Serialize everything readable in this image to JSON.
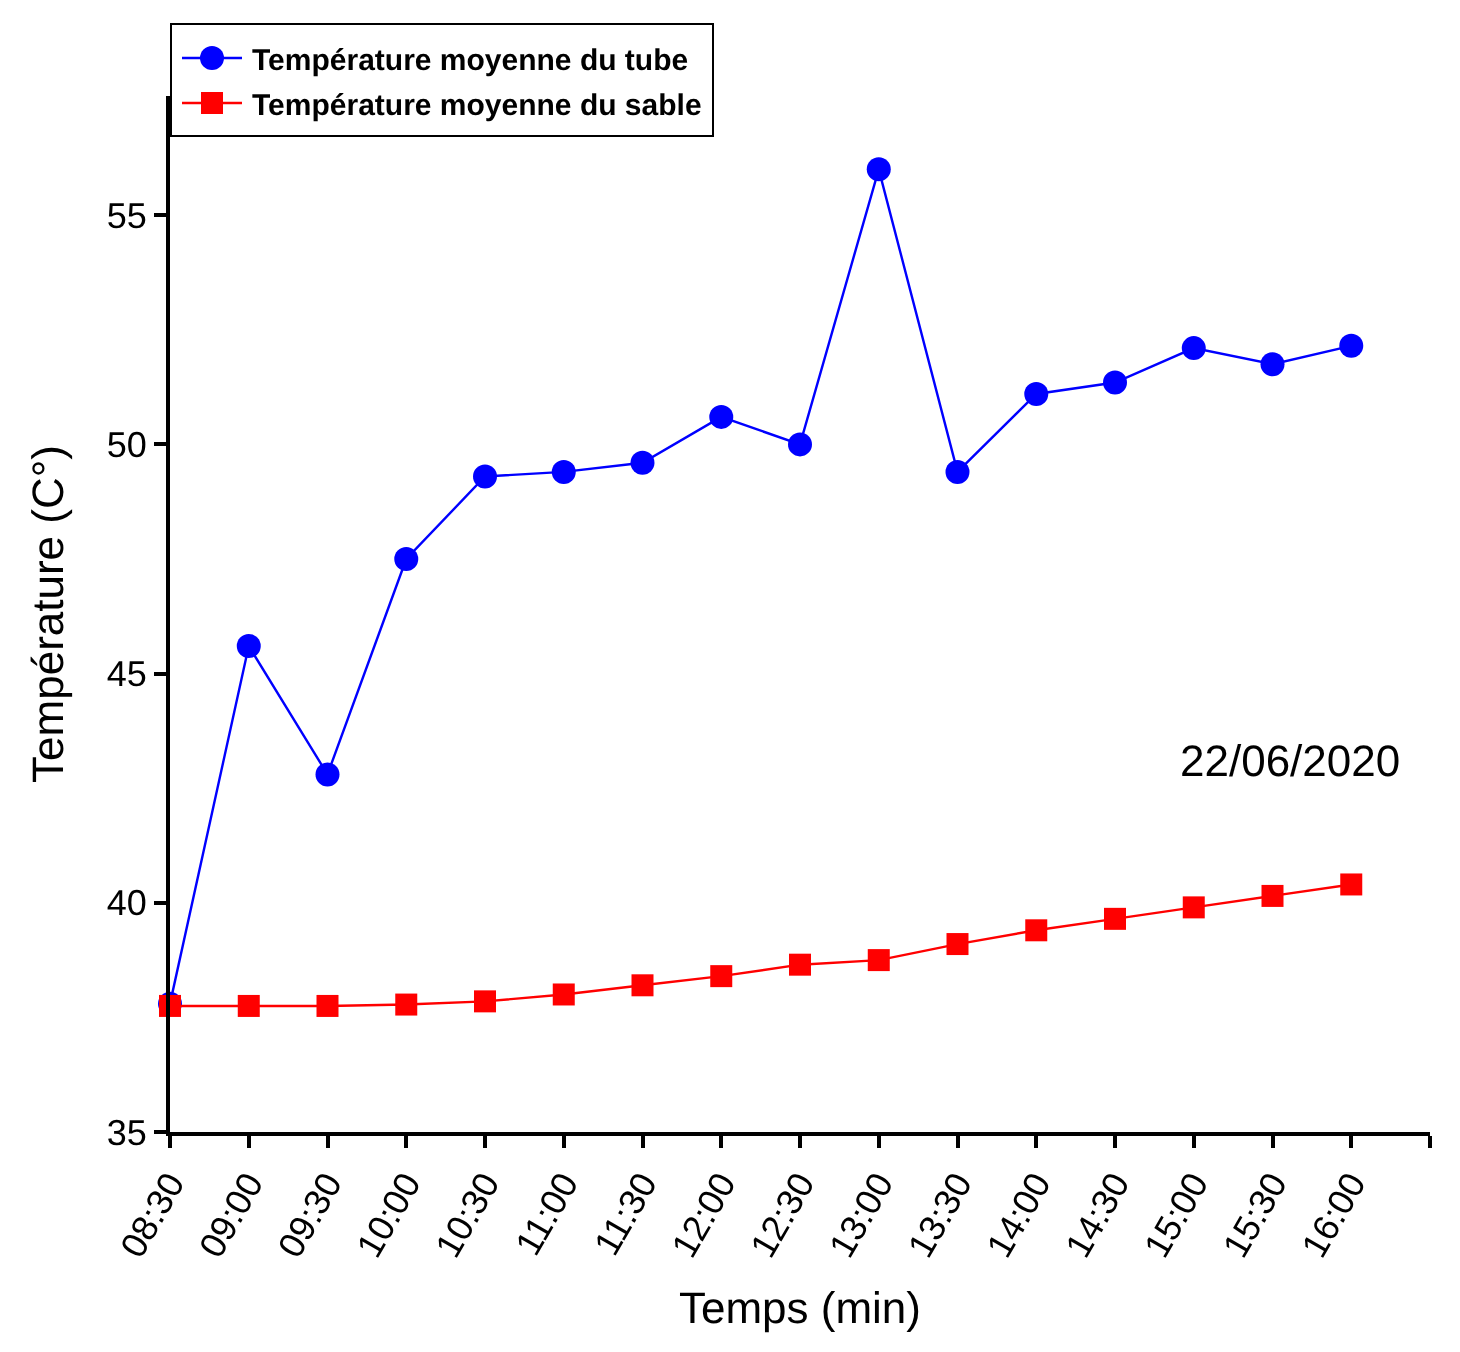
{
  "chart_data": {
    "type": "line",
    "xlabel": "Temps (min)",
    "ylabel": "Température (C°)",
    "x": [
      8.5,
      9,
      9.5,
      10,
      10.5,
      11,
      11.5,
      12,
      12.5,
      13,
      13.5,
      14,
      14.5,
      15,
      15.5,
      16
    ],
    "xlim": [
      8.5,
      16.5
    ],
    "xticks": [
      {
        "value": 8.5,
        "label": "08:30"
      },
      {
        "value": 9,
        "label": "09:00"
      },
      {
        "value": 9.5,
        "label": "09:30"
      },
      {
        "value": 10,
        "label": "10:00"
      },
      {
        "value": 10.5,
        "label": "10:30"
      },
      {
        "value": 11,
        "label": "11:00"
      },
      {
        "value": 11.5,
        "label": "11:30"
      },
      {
        "value": 12,
        "label": "12:00"
      },
      {
        "value": 12.5,
        "label": "12:30"
      },
      {
        "value": 13,
        "label": "13:00"
      },
      {
        "value": 13.5,
        "label": "13:30"
      },
      {
        "value": 14,
        "label": "14:00"
      },
      {
        "value": 14.5,
        "label": "14:30"
      },
      {
        "value": 15,
        "label": "15:00"
      },
      {
        "value": 15.5,
        "label": "15:30"
      },
      {
        "value": 16,
        "label": "16:00"
      },
      {
        "value": 16.5,
        "label": null
      }
    ],
    "ylim": [
      35,
      57.6
    ],
    "yticks": [
      35,
      40,
      45,
      50,
      55
    ],
    "series": [
      {
        "name": "Température moyenne du tube",
        "color": "#0000ff",
        "marker": "circle",
        "values": [
          37.8,
          45.6,
          42.8,
          47.5,
          49.3,
          49.4,
          49.6,
          50.6,
          50.0,
          56.0,
          49.4,
          51.1,
          51.35,
          52.1,
          51.75,
          52.15
        ]
      },
      {
        "name": "Température moyenne du sable",
        "color": "#ff0000",
        "marker": "square",
        "values": [
          37.75,
          37.75,
          37.75,
          37.78,
          37.85,
          38.0,
          38.2,
          38.4,
          38.65,
          38.75,
          39.1,
          39.4,
          39.65,
          39.9,
          40.15,
          40.4
        ]
      }
    ],
    "annotations": [
      "22/06/2020"
    ],
    "legend": "top left",
    "line_style": "solid"
  }
}
